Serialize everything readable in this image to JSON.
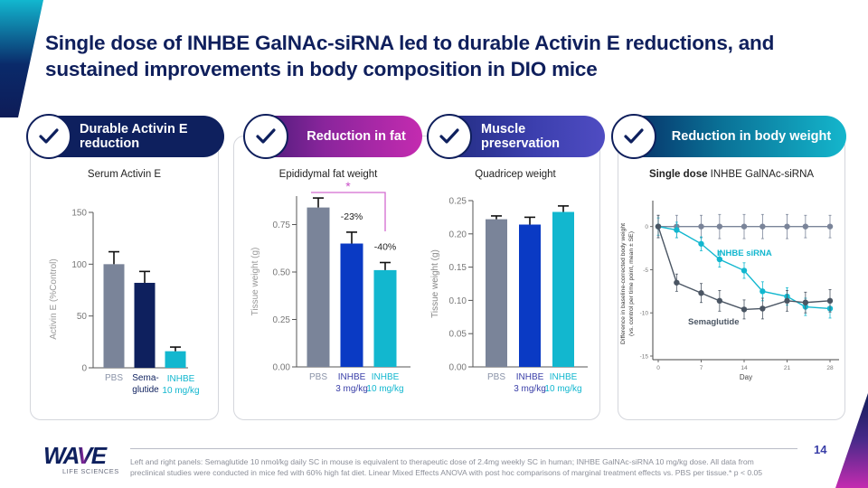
{
  "slide": {
    "title": "Single dose of INHBE GalNAc-siRNA led to durable Activin E reductions, and sustained improvements in body composition in DIO mice",
    "page_number": "14",
    "colors": {
      "navy": "#0e205e",
      "pbs_gray": "#7a8499",
      "inhbe_3": "#0a3ac4",
      "inhbe_10": "#12b7cf",
      "semaglutide_bar": "#0e205e",
      "semaglutide_line": "#4a5563",
      "significance": "#c94fc8"
    }
  },
  "pills": [
    {
      "label": "Durable Activin E reduction",
      "icon": "checkmark-icon"
    },
    {
      "label": "Reduction in fat",
      "icon": "checkmark-icon"
    },
    {
      "label": "Muscle preservation",
      "icon": "checkmark-icon"
    },
    {
      "label": "Reduction in body weight",
      "icon": "checkmark-icon"
    }
  ],
  "chart_titles": {
    "serum": "Serum Activin E",
    "fat": "Epididymal fat weight",
    "quad": "Quadricep weight",
    "bw_bold": "Single dose",
    "bw_rest": " INHBE GalNAc-siRNA"
  },
  "footer": {
    "logo_text": "WAVE",
    "logo_sub": "LIFE SCIENCES",
    "footnote_line1": "Left and right panels: Semaglutide 10 nmol/kg daily SC in mouse is equivalent to therapeutic dose of 2.4mg weekly SC in human; INHBE GalNAc-siRNA 10 mg/kg dose.  All  data from",
    "footnote_line2": "preclinical studies were conducted in mice fed with 60% high fat diet. Linear Mixed Effects ANOVA with post hoc comparisons of marginal treatment effects vs. PBS per tissue.* p < 0.05"
  },
  "chart_data": [
    {
      "type": "bar",
      "title": "Serum Activin E",
      "ylabel": "Activin  E (%Control)",
      "xlabel": "",
      "ylim": [
        0,
        150
      ],
      "yticks": [
        0,
        50,
        100,
        150
      ],
      "categories": [
        [
          "PBS"
        ],
        [
          "Sema-",
          "glutide"
        ],
        [
          "INHBE",
          "10 mg/kg"
        ]
      ],
      "values": [
        100,
        82,
        16
      ],
      "errors": [
        12,
        11,
        4
      ],
      "bar_colors": [
        "#7a8499",
        "#0e205e",
        "#12b7cf"
      ],
      "label_colors": [
        "#8a93a8",
        "#0e205e",
        "#12b7cf"
      ]
    },
    {
      "type": "bar",
      "title": "Epididymal fat weight",
      "ylabel": "Tissue weight (g)",
      "xlabel": "",
      "ylim": [
        0,
        0.9
      ],
      "yticks": [
        "0.00",
        "0.25",
        "0.50",
        "0.75"
      ],
      "categories": [
        [
          "PBS"
        ],
        [
          "INHBE",
          "3 mg/kg"
        ],
        [
          "INHBE",
          "10 mg/kg"
        ]
      ],
      "values": [
        0.84,
        0.65,
        0.51
      ],
      "errors": [
        0.05,
        0.06,
        0.04
      ],
      "bar_colors": [
        "#7a8499",
        "#0a3ac4",
        "#12b7cf"
      ],
      "label_colors": [
        "#8a93a8",
        "#3a3fa8",
        "#12b7cf"
      ],
      "annotations": [
        "",
        "-23%",
        "-40%"
      ],
      "significance": {
        "from": 0,
        "to": 2,
        "label": "*"
      }
    },
    {
      "type": "bar",
      "title": "Quadricep weight",
      "ylabel": "Tissue weight (g)",
      "xlabel": "",
      "ylim": [
        0,
        0.25
      ],
      "yticks": [
        "0.00",
        "0.05",
        "0.10",
        "0.15",
        "0.20",
        "0.25"
      ],
      "categories": [
        [
          "PBS"
        ],
        [
          "INHBE",
          "3 mg/kg"
        ],
        [
          "INHBE",
          "10 mg/kg"
        ]
      ],
      "values": [
        0.222,
        0.214,
        0.233
      ],
      "errors": [
        0.005,
        0.011,
        0.009
      ],
      "bar_colors": [
        "#7a8499",
        "#0a3ac4",
        "#12b7cf"
      ],
      "label_colors": [
        "#8a93a8",
        "#3a3fa8",
        "#12b7cf"
      ]
    },
    {
      "type": "line",
      "title": "Single dose INHBE GalNAc-siRNA",
      "xlabel": "Day",
      "ylabel": "Difference in baseline-corrected body weight (vs. control per time point, mean ± SE)",
      "xlim": [
        0,
        28
      ],
      "ylim": [
        -15,
        3
      ],
      "xticks": [
        0,
        7,
        14,
        21,
        28
      ],
      "yticks": [
        0,
        -5,
        -10,
        -15
      ],
      "series": [
        {
          "name": "PBS",
          "color": "#7a8499",
          "show_label": false,
          "x": [
            0,
            3,
            7,
            10,
            14,
            17,
            21,
            24,
            28
          ],
          "y": [
            0,
            0,
            0,
            0,
            0,
            0,
            0,
            0,
            0
          ],
          "err": [
            1.3,
            1.3,
            1.3,
            1.4,
            1.4,
            1.4,
            1.4,
            1.3,
            1.3
          ]
        },
        {
          "name": "INHBE siRNA",
          "color": "#12b7cf",
          "show_label": true,
          "x": [
            0,
            3,
            7,
            10,
            14,
            17,
            21,
            24,
            28
          ],
          "y": [
            0,
            -0.4,
            -2.0,
            -3.8,
            -5.1,
            -7.5,
            -8.1,
            -9.3,
            -9.5
          ],
          "err": [
            1.0,
            0.9,
            0.8,
            0.9,
            0.9,
            1.1,
            1.0,
            1.0,
            1.1
          ]
        },
        {
          "name": "Semaglutide",
          "color": "#4a5563",
          "show_label": true,
          "x": [
            0,
            3,
            7,
            10,
            14,
            17,
            21,
            24,
            28
          ],
          "y": [
            0,
            -6.5,
            -7.7,
            -8.6,
            -9.6,
            -9.5,
            -8.6,
            -8.8,
            -8.6
          ],
          "err": [
            1.3,
            1.0,
            1.1,
            1.2,
            1.1,
            1.2,
            1.2,
            1.2,
            1.3
          ]
        }
      ]
    }
  ]
}
